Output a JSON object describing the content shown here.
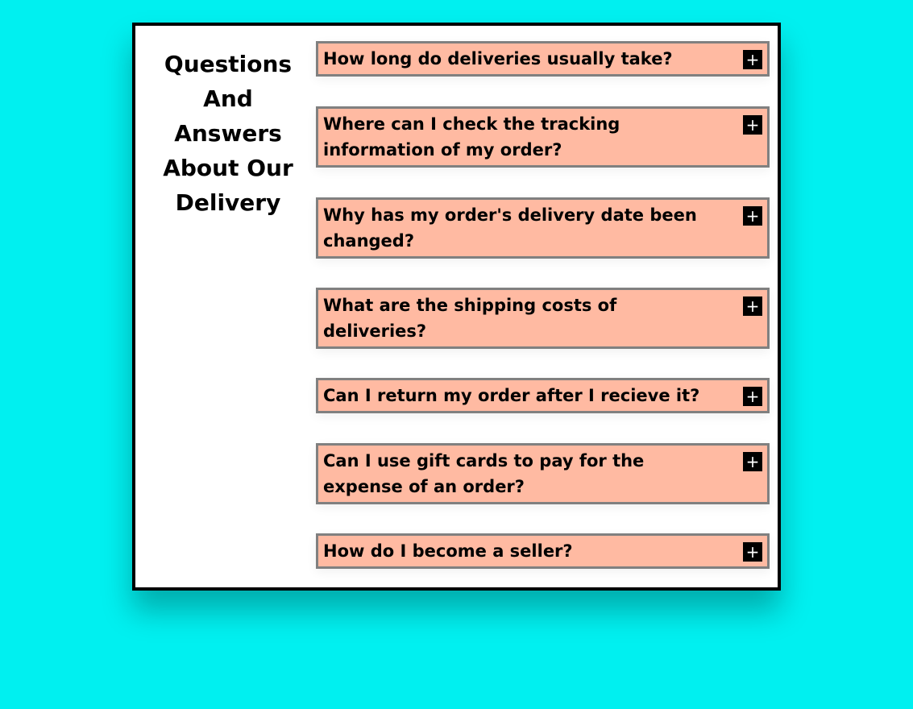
{
  "faq": {
    "title": "Questions And Answers About Our Delivery",
    "toggle_symbol": "+",
    "items": [
      {
        "question": "How long do deliveries usually take?"
      },
      {
        "question": "Where can I check the tracking information of my order?"
      },
      {
        "question": "Why has my order's delivery date been changed?"
      },
      {
        "question": "What are the shipping costs of deliveries?"
      },
      {
        "question": "Can I return my order after I recieve it?"
      },
      {
        "question": "Can I use gift cards to pay for the expense of an order?"
      },
      {
        "question": "How do I become a seller?"
      }
    ]
  },
  "colors": {
    "page_background": "#00f0f0",
    "card_background": "#ffffff",
    "card_border": "#000000",
    "item_background": "#ffbaa2",
    "item_border": "#808080",
    "toggle_background": "#000000",
    "toggle_icon": "#ffffff"
  },
  "icons": {
    "toggle": "plus-icon"
  }
}
